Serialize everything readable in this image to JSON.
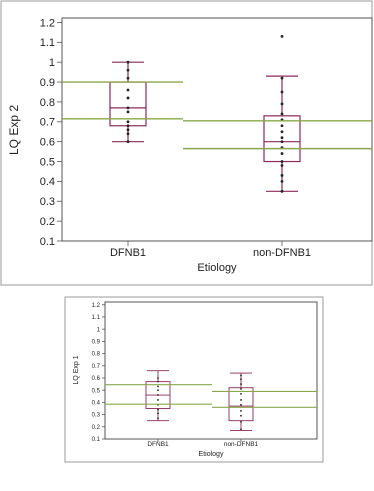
{
  "chart_data": [
    {
      "type": "box",
      "xlabel": "Etiology",
      "ylabel": "LQ Exp 2",
      "ylim": [
        0.1,
        1.2
      ],
      "yticks": [
        "1.2",
        "1.1",
        "1",
        "0.9",
        "0.8",
        "0.7",
        "0.6",
        "0.5",
        "0.4",
        "0.3",
        "0.2",
        "0.1"
      ],
      "categories": [
        "DFNB1",
        "non-DFNB1"
      ],
      "boxes": [
        {
          "name": "DFNB1",
          "min": 0.6,
          "q1": 0.68,
          "median": 0.77,
          "q3": 0.9,
          "max": 1.0,
          "points": [
            0.6,
            0.64,
            0.66,
            0.68,
            0.7,
            0.75,
            0.77,
            0.82,
            0.86,
            0.92,
            0.96,
            1.0
          ]
        },
        {
          "name": "non-DFNB1",
          "min": 0.35,
          "q1": 0.5,
          "median": 0.6,
          "q3": 0.73,
          "max": 0.93,
          "outliers": [
            1.13
          ],
          "points": [
            0.35,
            0.4,
            0.43,
            0.48,
            0.5,
            0.54,
            0.57,
            0.6,
            0.62,
            0.65,
            0.68,
            0.71,
            0.74,
            0.79,
            0.85,
            0.92
          ]
        }
      ],
      "reference_lines": [
        {
          "category": "DFNB1",
          "values": [
            0.9,
            0.715
          ]
        },
        {
          "category": "non-DFNB1",
          "values": [
            0.705,
            0.565
          ]
        }
      ],
      "colors": {
        "box": "#8b2a5a",
        "points": "#222222",
        "reference": "#8aa84a",
        "frame": "#555555"
      },
      "grid": false
    },
    {
      "type": "box",
      "xlabel": "Etiology",
      "ylabel": "LQ Exp 1",
      "ylim": [
        0.1,
        1.2
      ],
      "yticks": [
        "1.2",
        "1.1",
        "1",
        "0.9",
        "0.8",
        "0.7",
        "0.6",
        "0.5",
        "0.4",
        "0.3",
        "0.2",
        "0.1"
      ],
      "categories": [
        "DFNB1",
        "non-DFNB1"
      ],
      "boxes": [
        {
          "name": "DFNB1",
          "min": 0.25,
          "q1": 0.35,
          "median": 0.46,
          "q3": 0.57,
          "max": 0.66,
          "points": [
            0.27,
            0.31,
            0.34,
            0.38,
            0.42,
            0.46,
            0.5,
            0.53,
            0.57,
            0.6
          ]
        },
        {
          "name": "non-DFNB1",
          "min": 0.17,
          "q1": 0.25,
          "median": 0.37,
          "q3": 0.52,
          "max": 0.64,
          "points": [
            0.18,
            0.24,
            0.29,
            0.33,
            0.38,
            0.42,
            0.47,
            0.51,
            0.55,
            0.59,
            0.62
          ]
        }
      ],
      "reference_lines": [
        {
          "category": "DFNB1",
          "values": [
            0.545,
            0.385
          ]
        },
        {
          "category": "non-DFNB1",
          "values": [
            0.49,
            0.36
          ]
        }
      ],
      "colors": {
        "box": "#8b2a5a",
        "points": "#222222",
        "reference": "#8aa84a",
        "frame": "#555555"
      },
      "grid": false
    }
  ]
}
